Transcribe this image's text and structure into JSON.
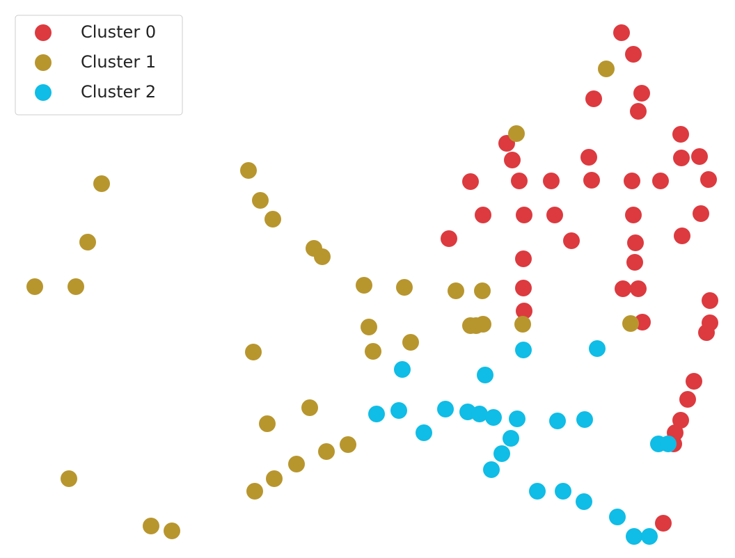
{
  "chart_data": {
    "type": "scatter",
    "legend": "upper left",
    "grid": false,
    "xlim": [
      0,
      105.6
    ],
    "ylim": [
      0,
      80.2
    ],
    "series": [
      {
        "name": "Cluster 0",
        "color": "#dc3a3f",
        "x": [
          89.3,
          91.0,
          92.2,
          85.3,
          91.7,
          97.8,
          72.8,
          73.6,
          84.6,
          97.9,
          100.5,
          67.6,
          74.6,
          79.2,
          85.0,
          90.8,
          94.9,
          101.8,
          69.4,
          75.3,
          79.7,
          91.0,
          100.7,
          64.5,
          82.1,
          98.0,
          91.3,
          75.2,
          91.2,
          89.5,
          91.7,
          75.2,
          102.0,
          75.3,
          92.3,
          102.0,
          101.5,
          99.7,
          98.8,
          97.8,
          97.0,
          96.8,
          95.3
        ],
        "values": [
          75.5,
          72.4,
          66.8,
          66.0,
          64.2,
          60.9,
          59.6,
          57.2,
          57.6,
          57.5,
          57.7,
          54.1,
          54.2,
          54.2,
          54.3,
          54.2,
          54.2,
          54.4,
          49.3,
          49.3,
          49.3,
          49.3,
          49.5,
          45.9,
          45.6,
          46.3,
          45.3,
          43.0,
          42.5,
          38.7,
          38.7,
          38.8,
          37.0,
          35.5,
          33.9,
          33.8,
          32.4,
          25.4,
          22.8,
          19.8,
          18.0,
          16.4,
          5.0
        ]
      },
      {
        "name": "Cluster 1",
        "color": "#b8962e",
        "x": [
          87.1,
          74.2,
          35.7,
          14.6,
          37.4,
          39.2,
          12.6,
          45.1,
          46.3,
          5.0,
          10.9,
          52.3,
          58.1,
          65.5,
          69.3,
          53.0,
          67.6,
          69.4,
          68.4,
          75.1,
          90.6,
          59.0,
          53.6,
          36.4,
          44.5,
          38.4,
          50.0,
          46.9,
          42.6,
          39.4,
          36.6,
          9.9,
          21.7,
          24.7
        ],
        "values": [
          70.3,
          61.0,
          55.7,
          53.8,
          51.4,
          48.7,
          45.4,
          44.5,
          43.3,
          39.0,
          39.0,
          39.2,
          38.9,
          38.4,
          38.4,
          33.2,
          33.4,
          33.6,
          33.4,
          33.6,
          33.7,
          31.0,
          29.7,
          29.6,
          21.6,
          19.3,
          16.3,
          15.3,
          13.5,
          11.4,
          9.6,
          11.4,
          4.6,
          3.9
        ]
      },
      {
        "name": "Cluster 2",
        "color": "#0fbde6",
        "x": [
          75.2,
          85.8,
          57.8,
          69.7,
          54.1,
          57.3,
          64.0,
          67.2,
          68.9,
          70.9,
          74.3,
          80.1,
          84.0,
          60.9,
          73.4,
          72.1,
          70.6,
          94.6,
          96.0,
          77.2,
          80.9,
          83.9,
          88.7,
          91.1,
          93.3
        ],
        "values": [
          29.9,
          30.1,
          27.1,
          26.3,
          20.7,
          21.2,
          21.4,
          21.0,
          20.7,
          20.2,
          20.0,
          19.7,
          19.9,
          18.0,
          17.2,
          15.0,
          12.7,
          16.4,
          16.4,
          9.6,
          9.6,
          8.1,
          5.9,
          3.1,
          3.1
        ]
      }
    ]
  }
}
